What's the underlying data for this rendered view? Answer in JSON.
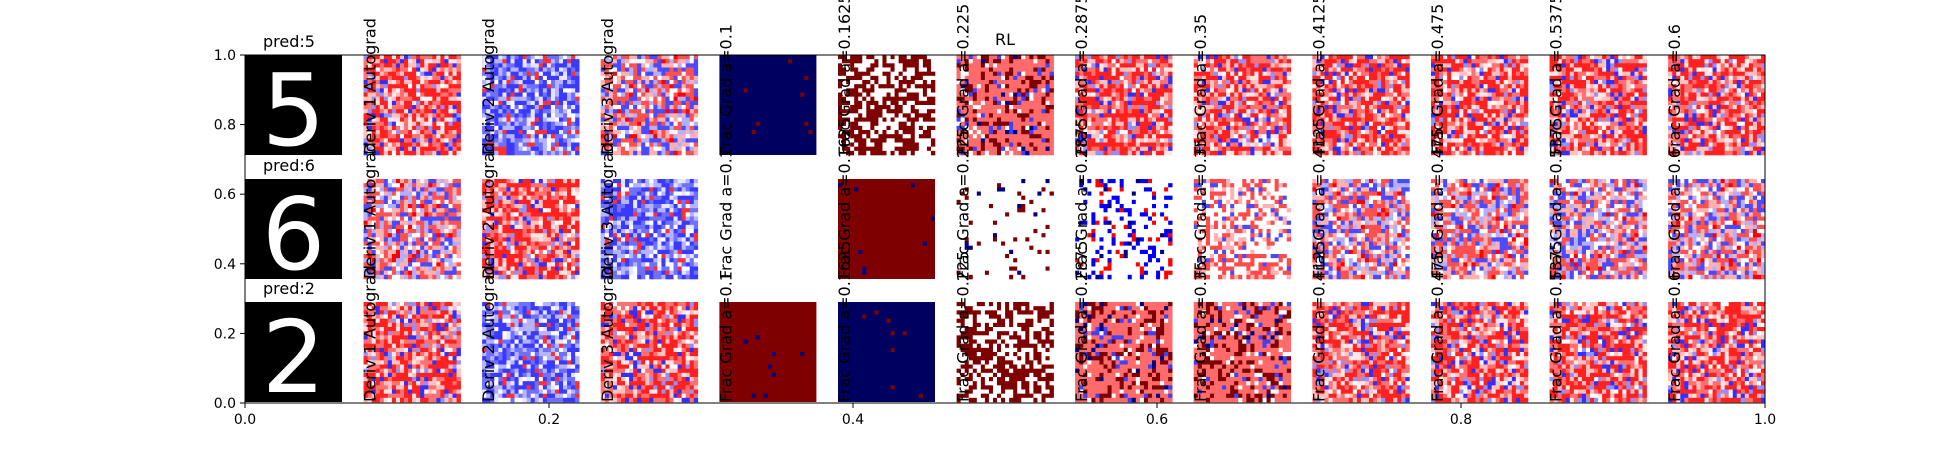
{
  "chart_data": {
    "type": "heatmap",
    "title": "RL",
    "xlim": [
      0.0,
      1.0
    ],
    "ylim": [
      0.0,
      1.0
    ],
    "x_ticks": [
      0.0,
      0.2,
      0.4,
      0.6,
      0.8,
      1.0
    ],
    "x_tick_labels": [
      "0.0",
      "0.2",
      "0.4",
      "0.6",
      "0.8",
      "1.0"
    ],
    "y_ticks": [
      0.0,
      0.2,
      0.4,
      0.6,
      0.8,
      1.0
    ],
    "y_tick_labels": [
      "0.0",
      "0.2",
      "0.4",
      "0.6",
      "0.8",
      "1.0"
    ],
    "grid": false,
    "colormap": "seismic",
    "columns": [
      "Deriv 1 Autograd",
      "Deriv 2 Autograd",
      "Deriv 3 Autograd",
      "Frac Grad a=0.1",
      "Frac Grad a=0.1625",
      "Frac Grad a=0.225",
      "Frac Grad a=0.2875",
      "Frac Grad a=0.35",
      "Frac Grad a=0.4125",
      "Frac Grad a=0.475",
      "Frac Grad a=0.5375",
      "Frac Grad a=0.6"
    ],
    "rows": [
      {
        "prediction": "pred:5",
        "digit": "5",
        "panels": [
          {
            "style": "red-mixed",
            "seed": 11
          },
          {
            "style": "blue-mixed",
            "seed": 12
          },
          {
            "style": "speckle",
            "seed": 13
          },
          {
            "style": "solid-blue",
            "seed": 14
          },
          {
            "style": "maroon-white",
            "seed": 15
          },
          {
            "style": "salmon-maroon",
            "seed": 16
          },
          {
            "style": "red-mixed",
            "seed": 17
          },
          {
            "style": "red-mixed",
            "seed": 18
          },
          {
            "style": "red-mixed",
            "seed": 19
          },
          {
            "style": "red-mixed",
            "seed": 20
          },
          {
            "style": "red-mixed",
            "seed": 21
          },
          {
            "style": "red-mixed",
            "seed": 22
          }
        ]
      },
      {
        "prediction": "pred:6",
        "digit": "6",
        "panels": [
          {
            "style": "speckle",
            "seed": 31
          },
          {
            "style": "red-mixed",
            "seed": 32
          },
          {
            "style": "blue-mixed",
            "seed": 33
          },
          {
            "style": "empty",
            "seed": 34
          },
          {
            "style": "solid-maroon",
            "seed": 35
          },
          {
            "style": "sparse",
            "seed": 36
          },
          {
            "style": "sparse-blue",
            "seed": 37
          },
          {
            "style": "white-red",
            "seed": 38
          },
          {
            "style": "speckle",
            "seed": 39
          },
          {
            "style": "speckle",
            "seed": 40
          },
          {
            "style": "speckle",
            "seed": 41
          },
          {
            "style": "speckle",
            "seed": 42
          }
        ]
      },
      {
        "prediction": "pred:2",
        "digit": "2",
        "panels": [
          {
            "style": "red-mixed",
            "seed": 51
          },
          {
            "style": "blue-mixed",
            "seed": 52
          },
          {
            "style": "red-mixed",
            "seed": 53
          },
          {
            "style": "solid-maroon",
            "seed": 54
          },
          {
            "style": "solid-blue",
            "seed": 55
          },
          {
            "style": "maroon-white",
            "seed": 56
          },
          {
            "style": "salmon-maroon",
            "seed": 57
          },
          {
            "style": "salmon-maroon",
            "seed": 58
          },
          {
            "style": "red-mixed",
            "seed": 59
          },
          {
            "style": "red-mixed",
            "seed": 60
          },
          {
            "style": "red-mixed",
            "seed": 61
          },
          {
            "style": "red-mixed",
            "seed": 62
          }
        ]
      }
    ]
  }
}
